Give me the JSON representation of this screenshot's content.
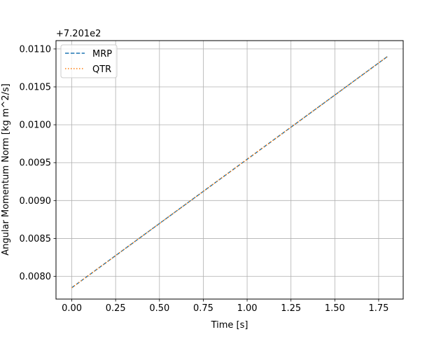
{
  "chart_data": {
    "type": "line",
    "title": "",
    "xlabel": "Time [s]",
    "ylabel": "Angular Momentum Norm [kg m^2/s]",
    "offset_text": "+7.201e2",
    "y_offset": 720.1,
    "xlim": [
      -0.09,
      1.89
    ],
    "ylim": [
      0.0077,
      0.01111
    ],
    "x_ticks": [
      0.0,
      0.25,
      0.5,
      0.75,
      1.0,
      1.25,
      1.5,
      1.75
    ],
    "x_tick_labels": [
      "0.00",
      "0.25",
      "0.50",
      "0.75",
      "1.00",
      "1.25",
      "1.50",
      "1.75"
    ],
    "y_ticks": [
      0.008,
      0.0085,
      0.009,
      0.0095,
      0.01,
      0.0105,
      0.011
    ],
    "y_tick_labels": [
      "0.0080",
      "0.0085",
      "0.0090",
      "0.0095",
      "0.0100",
      "0.0105",
      "0.0110"
    ],
    "grid": true,
    "legend_position": "top-left",
    "series": [
      {
        "name": "MRP",
        "color": "#1f77b4",
        "style": "dashed",
        "x": [
          0.0,
          1.8
        ],
        "y": [
          0.00785,
          0.0109
        ]
      },
      {
        "name": "QTR",
        "color": "#ff7f0e",
        "style": "dotted",
        "x": [
          0.0,
          1.8
        ],
        "y": [
          0.00785,
          0.0109
        ]
      }
    ]
  }
}
